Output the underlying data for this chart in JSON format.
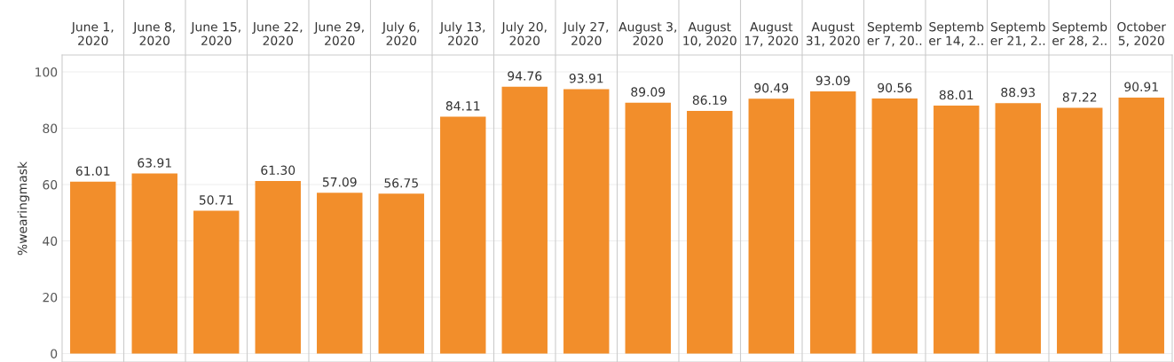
{
  "chart_data": {
    "type": "bar",
    "ylabel": "%wearingmask",
    "categories": [
      "June 1,\n2020",
      "June 8,\n2020",
      "June 15,\n2020",
      "June 22,\n2020",
      "June 29,\n2020",
      "July 6,\n2020",
      "July 13,\n2020",
      "July 20,\n2020",
      "July 27,\n2020",
      "August 3,\n2020",
      "August\n10, 2020",
      "August\n17, 2020",
      "August\n31, 2020",
      "Septemb\ner 7, 20..",
      "Septemb\ner 14, 2..",
      "Septemb\ner 21, 2..",
      "Septemb\ner 28, 2..",
      "October\n5, 2020"
    ],
    "values": [
      61.01,
      63.91,
      50.71,
      61.3,
      57.09,
      56.75,
      84.11,
      94.76,
      93.91,
      89.09,
      86.19,
      90.49,
      93.09,
      90.56,
      88.01,
      88.93,
      87.22,
      90.91
    ],
    "value_labels": [
      "61.01",
      "63.91",
      "50.71",
      "61.30",
      "57.09",
      "56.75",
      "84.11",
      "94.76",
      "93.91",
      "89.09",
      "86.19",
      "90.49",
      "93.09",
      "90.56",
      "88.01",
      "88.93",
      "87.22",
      "90.91"
    ],
    "color": "#f28e2b",
    "ylim": [
      -3,
      106
    ],
    "yticks": [
      0,
      20,
      40,
      60,
      80,
      100
    ],
    "grid": true
  }
}
